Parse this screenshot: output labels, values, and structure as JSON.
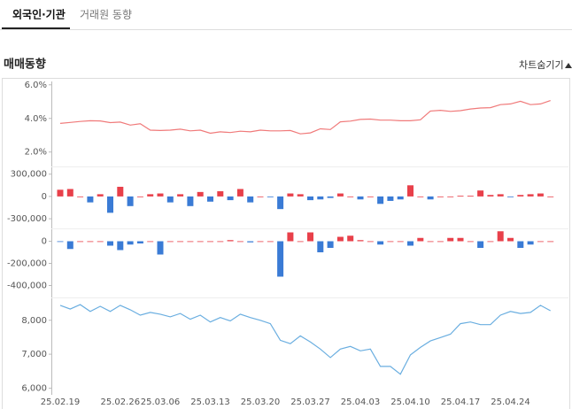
{
  "tabs": [
    "외국인·기관",
    "거래원 동향"
  ],
  "section_title": "매매동향",
  "toggle_label": "차트숨기기",
  "chart_data": [
    {
      "type": "line",
      "color": "#f07a7a",
      "values": [
        3.7,
        3.76,
        3.82,
        3.86,
        3.85,
        3.75,
        3.78,
        3.6,
        3.68,
        3.3,
        3.28,
        3.3,
        3.36,
        3.26,
        3.3,
        3.12,
        3.2,
        3.16,
        3.24,
        3.2,
        3.3,
        3.26,
        3.26,
        3.28,
        3.08,
        3.14,
        3.38,
        3.34,
        3.8,
        3.84,
        3.94,
        3.96,
        3.9,
        3.9,
        3.86,
        3.86,
        3.92,
        4.44,
        4.48,
        4.42,
        4.46,
        4.56,
        4.62,
        4.64,
        4.82,
        4.86,
        5.02,
        4.82,
        4.86,
        5.06
      ],
      "ylim": [
        1.3,
        6.2
      ],
      "yticks": [
        {
          "value": 6,
          "label": "6.0%"
        },
        {
          "value": 4,
          "label": "4.0%"
        },
        {
          "value": 2,
          "label": "2.0%"
        }
      ]
    },
    {
      "type": "bar",
      "pos_color": "#e8404a",
      "neg_color": "#3a7bd5",
      "values": [
        90000,
        100000,
        0,
        -80000,
        30000,
        -220000,
        130000,
        -130000,
        0,
        30000,
        40000,
        -80000,
        30000,
        -130000,
        60000,
        -70000,
        70000,
        -50000,
        100000,
        -80000,
        0,
        -10000,
        -170000,
        40000,
        30000,
        -50000,
        -40000,
        -20000,
        40000,
        0,
        -40000,
        0,
        -100000,
        -60000,
        -40000,
        150000,
        0,
        -40000,
        0,
        0,
        10000,
        10000,
        80000,
        20000,
        30000,
        -10000,
        20000,
        30000,
        40000,
        0
      ],
      "ylim": [
        -430000,
        380000
      ],
      "yticks": [
        {
          "value": 300000,
          "label": "300,000"
        },
        0,
        {
          "value": -300000,
          "label": "-300,000"
        }
      ]
    },
    {
      "type": "bar",
      "pos_color": "#e8404a",
      "neg_color": "#3a7bd5",
      "values": [
        -5000,
        -70000,
        0,
        0,
        0,
        -40000,
        -80000,
        -30000,
        -20000,
        0,
        -120000,
        0,
        0,
        0,
        0,
        0,
        0,
        10000,
        0,
        -10000,
        0,
        0,
        -320000,
        80000,
        0,
        80000,
        -100000,
        -60000,
        40000,
        50000,
        10000,
        0,
        -30000,
        0,
        0,
        -40000,
        30000,
        0,
        0,
        30000,
        30000,
        0,
        -60000,
        0,
        90000,
        30000,
        -60000,
        -30000,
        0,
        0
      ],
      "ylim": [
        -500000,
        100000
      ],
      "yticks": [
        0,
        {
          "value": -200000,
          "label": "-200,000"
        },
        {
          "value": -400000,
          "label": "-400,000"
        }
      ]
    },
    {
      "type": "line",
      "color": "#6aaee0",
      "categories": [
        "25.02.19",
        null,
        null,
        null,
        null,
        null,
        "25.02.26",
        null,
        null,
        null,
        "25.03.06",
        null,
        null,
        null,
        null,
        "25.03.13",
        null,
        null,
        null,
        null,
        "25.03.20",
        null,
        null,
        null,
        null,
        "25.03.27",
        null,
        null,
        null,
        null,
        "25.04.03",
        null,
        null,
        null,
        null,
        "25.04.10",
        null,
        null,
        null,
        null,
        "25.04.17",
        null,
        null,
        null,
        null,
        "25.04.24",
        null,
        null,
        null,
        null
      ],
      "values": [
        8440,
        8330,
        8460,
        8260,
        8410,
        8260,
        8440,
        8310,
        8150,
        8230,
        8180,
        8100,
        8200,
        8030,
        8150,
        7950,
        8080,
        7980,
        8180,
        8080,
        8000,
        7900,
        7410,
        7310,
        7540,
        7360,
        7150,
        6900,
        7150,
        7230,
        7100,
        7150,
        6640,
        6640,
        6410,
        6980,
        7200,
        7390,
        7490,
        7590,
        7900,
        7950,
        7870,
        7870,
        8150,
        8260,
        8200,
        8230,
        8440,
        8280
      ],
      "ylim": [
        5750,
        8620
      ],
      "yticks": [
        {
          "value": 8000,
          "label": "8,000"
        },
        {
          "value": 7000,
          "label": "7,000"
        },
        {
          "value": 6000,
          "label": "6,000"
        }
      ]
    }
  ]
}
